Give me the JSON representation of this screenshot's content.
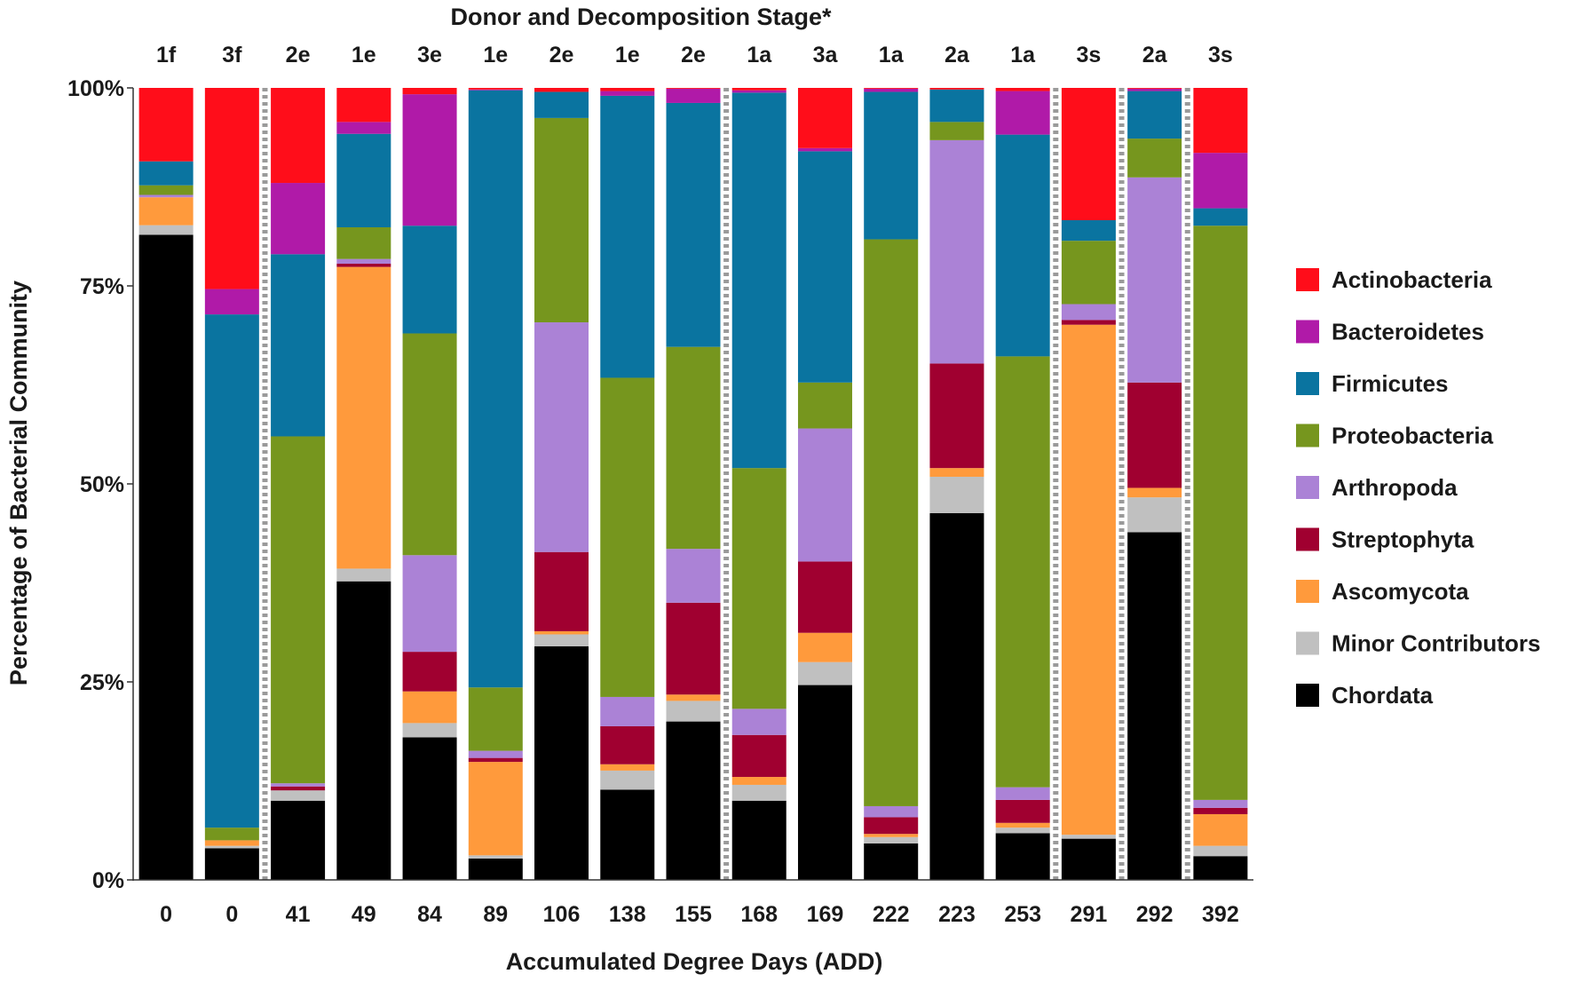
{
  "chart_data": {
    "type": "bar",
    "stacked": true,
    "normalized": true,
    "title": "Donor and Decomposition Stage*",
    "xlabel": "Accumulated Degree Days (ADD)",
    "ylabel": "Percentage of Bacterial Community",
    "ylim": [
      0,
      100
    ],
    "yticks": [
      {
        "value": 0,
        "label": "0%"
      },
      {
        "value": 25,
        "label": "25%"
      },
      {
        "value": 50,
        "label": "50%"
      },
      {
        "value": 75,
        "label": "75%"
      },
      {
        "value": 100,
        "label": "100%"
      }
    ],
    "categories": [
      "0",
      "0",
      "41",
      "49",
      "84",
      "89",
      "106",
      "138",
      "155",
      "168",
      "169",
      "222",
      "223",
      "253",
      "291",
      "292",
      "392"
    ],
    "stage_labels": [
      "1f",
      "3f",
      "2e",
      "1e",
      "3e",
      "1e",
      "2e",
      "1e",
      "2e",
      "1a",
      "3a",
      "1a",
      "2a",
      "1a",
      "3s",
      "2a",
      "3s"
    ],
    "group_separators_after": [
      1,
      8,
      13,
      14,
      15
    ],
    "legend_position": "right",
    "series": [
      {
        "name": "Chordata",
        "color": "#000000",
        "values": [
          80.8,
          4.0,
          10.0,
          37.7,
          18.0,
          2.7,
          29.5,
          11.4,
          20.0,
          10.0,
          24.6,
          4.6,
          46.3,
          5.9,
          5.2,
          43.9,
          3.0
        ]
      },
      {
        "name": "Minor Contributors",
        "color": "#c0c0c0",
        "values": [
          1.2,
          0.3,
          1.3,
          1.6,
          1.8,
          0.4,
          1.5,
          2.4,
          2.6,
          2.0,
          2.9,
          0.8,
          4.6,
          0.7,
          0.5,
          4.4,
          1.3
        ]
      },
      {
        "name": "Ascomycota",
        "color": "#ff9a3c",
        "values": [
          3.5,
          0.7,
          0.0,
          38.1,
          4.0,
          11.8,
          0.4,
          0.8,
          0.8,
          1.0,
          3.7,
          0.4,
          1.1,
          0.6,
          64.4,
          1.2,
          4.0
        ]
      },
      {
        "name": "Streptophyta",
        "color": "#a00030",
        "values": [
          0.0,
          0.0,
          0.5,
          0.4,
          5.0,
          0.5,
          10.0,
          4.8,
          11.6,
          5.3,
          9.0,
          2.1,
          13.2,
          2.9,
          0.6,
          13.3,
          0.8
        ]
      },
      {
        "name": "Arthropoda",
        "color": "#ab82d6",
        "values": [
          0.3,
          0.0,
          0.4,
          0.6,
          12.2,
          0.9,
          29.0,
          3.7,
          6.8,
          3.3,
          16.8,
          1.4,
          28.2,
          1.6,
          2.0,
          25.9,
          1.0
        ]
      },
      {
        "name": "Proteobacteria",
        "color": "#76961e",
        "values": [
          1.2,
          1.6,
          43.8,
          4.0,
          28.0,
          8.0,
          25.8,
          40.3,
          25.5,
          30.4,
          5.8,
          71.5,
          2.3,
          54.4,
          8.0,
          4.9,
          72.5
        ]
      },
      {
        "name": "Firmicutes",
        "color": "#0a74a0",
        "values": [
          3.0,
          64.8,
          23.0,
          11.8,
          13.6,
          75.4,
          3.3,
          35.6,
          30.8,
          47.4,
          29.2,
          18.6,
          4.1,
          28.0,
          2.6,
          6.0,
          2.2
        ]
      },
      {
        "name": "Bacteroidetes",
        "color": "#b01aa8",
        "values": [
          0.0,
          3.2,
          9.0,
          1.5,
          16.6,
          0.1,
          0.0,
          0.6,
          1.8,
          0.3,
          0.4,
          0.4,
          0.0,
          5.5,
          0.0,
          0.3,
          7.0
        ]
      },
      {
        "name": "Actinobacteria",
        "color": "#ff0d1a",
        "values": [
          9.2,
          25.4,
          12.0,
          4.3,
          0.8,
          0.2,
          0.5,
          0.4,
          0.1,
          0.3,
          7.6,
          0.1,
          0.2,
          0.4,
          16.7,
          0.1,
          8.2
        ]
      }
    ]
  }
}
